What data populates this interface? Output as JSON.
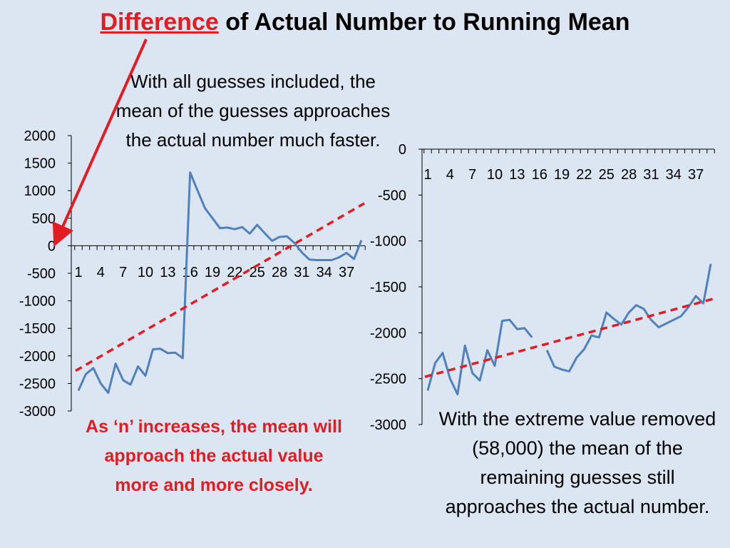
{
  "title": {
    "highlight": "Difference",
    "rest": " of Actual Number to Running Mean"
  },
  "notes": {
    "left_top": "With all guesses included, the mean of the guesses approaches the actual number much faster.",
    "left_bottom": "As ‘n’ increases, the mean will approach the actual value more and more closely.",
    "right_bottom": "With the extreme value removed (58,000) the mean of the remaining guesses still approaches the actual number."
  },
  "colors": {
    "series": "#4f81bd",
    "trend": "#e31b23",
    "arrow": "#e31b23",
    "background": "#dce6f2"
  },
  "chart_data": [
    {
      "type": "line",
      "title": "",
      "ylim": [
        -3000,
        2000
      ],
      "yticks": [
        2000,
        1500,
        1000,
        500,
        0,
        -500,
        -1000,
        -1500,
        -2000,
        -2500,
        -3000
      ],
      "xtick_labels": [
        "1",
        "4",
        "7",
        "10",
        "13",
        "16",
        "19",
        "22",
        "25",
        "28",
        "31",
        "34",
        "37"
      ],
      "x": [
        1,
        2,
        3,
        4,
        5,
        6,
        7,
        8,
        9,
        10,
        11,
        12,
        13,
        14,
        15,
        16,
        17,
        18,
        19,
        20,
        21,
        22,
        23,
        24,
        25,
        26,
        27,
        28,
        29,
        30,
        31,
        32,
        33,
        34,
        35,
        36,
        37,
        38,
        39
      ],
      "series": [
        {
          "values": [
            -2630,
            -2330,
            -2220,
            -2500,
            -2670,
            -2140,
            -2440,
            -2520,
            -2190,
            -2360,
            -1880,
            -1870,
            -1950,
            -1940,
            -2040,
            1330,
            1000,
            680,
            500,
            320,
            330,
            300,
            340,
            220,
            380,
            230,
            90,
            160,
            170,
            50,
            -120,
            -250,
            -260,
            -260,
            -260,
            -210,
            -130,
            -240,
            100
          ]
        }
      ],
      "trendline": {
        "style": "dashed",
        "x": [
          1,
          39
        ],
        "y": [
          -2270,
          770
        ]
      },
      "grid": false
    },
    {
      "type": "line",
      "title": "",
      "ylim": [
        -3000,
        0
      ],
      "yticks": [
        0,
        -500,
        -1000,
        -1500,
        -2000,
        -2500,
        -3000
      ],
      "xtick_labels": [
        "1",
        "4",
        "7",
        "10",
        "13",
        "16",
        "19",
        "22",
        "25",
        "28",
        "31",
        "34",
        "37"
      ],
      "x": [
        1,
        2,
        3,
        4,
        5,
        6,
        7,
        8,
        9,
        10,
        11,
        12,
        13,
        14,
        15,
        16,
        17,
        18,
        19,
        20,
        21,
        22,
        23,
        24,
        25,
        26,
        27,
        28,
        29,
        30,
        31,
        32,
        33,
        34,
        35,
        36,
        37,
        38,
        39
      ],
      "series": [
        {
          "values": [
            -2630,
            -2330,
            -2220,
            -2500,
            -2670,
            -2140,
            -2440,
            -2520,
            -2190,
            -2360,
            -1870,
            -1860,
            -1960,
            -1950,
            -2050,
            null,
            -2190,
            -2370,
            -2400,
            -2420,
            -2270,
            -2180,
            -2030,
            -2050,
            -1780,
            -1850,
            -1910,
            -1780,
            -1700,
            -1740,
            -1860,
            -1940,
            -1900,
            -1860,
            -1820,
            -1720,
            -1600,
            -1680,
            -1250
          ]
        }
      ],
      "trendline": {
        "style": "dashed",
        "x": [
          1,
          39
        ],
        "y": [
          -2480,
          -1630
        ]
      },
      "grid": false
    }
  ]
}
